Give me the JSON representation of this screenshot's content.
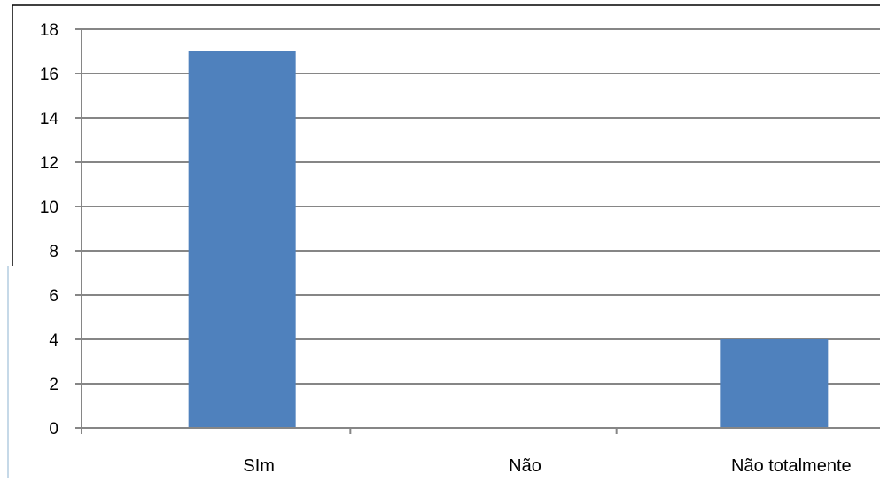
{
  "chart_data": {
    "type": "bar",
    "categories": [
      "SIm",
      "Não",
      "Não totalmente"
    ],
    "values": [
      17,
      0,
      4
    ],
    "ylim": [
      0,
      18
    ],
    "yticks": [
      0,
      2,
      4,
      6,
      8,
      10,
      12,
      14,
      16,
      18
    ],
    "grid": true,
    "legend": "none",
    "colors": {
      "bar": "#4f81bd",
      "grid": "#868686",
      "axis": "#868686",
      "frame": "#000000",
      "frame_accent": "#c6d9e8"
    }
  }
}
